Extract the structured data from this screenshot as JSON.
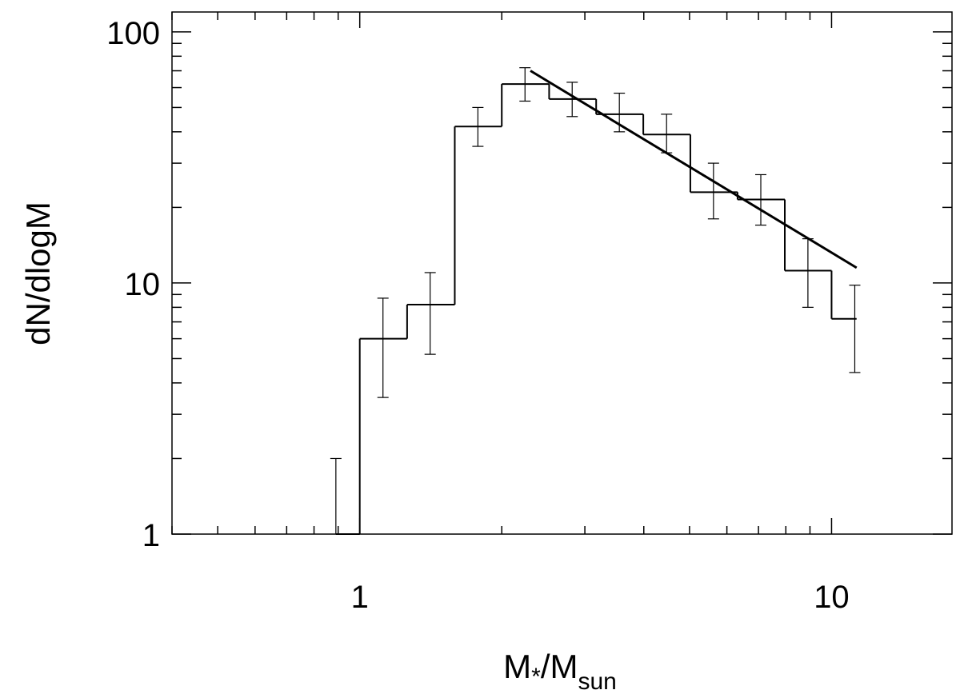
{
  "chart_data": {
    "type": "histogram",
    "xlabel": {
      "main": "M",
      "sub1": "*",
      "sep": "/M",
      "sub2": "sun"
    },
    "ylabel": "dN/dlogM",
    "x_scale": "log",
    "y_scale": "log",
    "xlim": [
      0.4,
      18
    ],
    "ylim": [
      1,
      120
    ],
    "x_ticks": [
      {
        "value": 1,
        "label": "1"
      },
      {
        "value": 10,
        "label": "10"
      }
    ],
    "y_ticks": [
      {
        "value": 1,
        "label": "1"
      },
      {
        "value": 10,
        "label": "10"
      },
      {
        "value": 100,
        "label": "100"
      }
    ],
    "grid": false,
    "legend": "none",
    "series": [
      {
        "type": "step",
        "bins": [
          {
            "left": 0.89,
            "right": 1.0,
            "value": 1.0
          },
          {
            "left": 1.0,
            "right": 1.26,
            "value": 6.0
          },
          {
            "left": 1.26,
            "right": 1.59,
            "value": 8.2
          },
          {
            "left": 1.59,
            "right": 2.0,
            "value": 42
          },
          {
            "left": 2.0,
            "right": 2.52,
            "value": 62
          },
          {
            "left": 2.52,
            "right": 3.17,
            "value": 54
          },
          {
            "left": 3.17,
            "right": 3.99,
            "value": 47
          },
          {
            "left": 3.99,
            "right": 5.02,
            "value": 39
          },
          {
            "left": 5.02,
            "right": 6.32,
            "value": 23
          },
          {
            "left": 6.32,
            "right": 7.96,
            "value": 21.5
          },
          {
            "left": 7.96,
            "right": 10.0,
            "value": 11.2
          },
          {
            "left": 10.0,
            "right": 11.3,
            "value": 7.2
          }
        ]
      },
      {
        "type": "errorbars",
        "points": [
          {
            "x": 0.89,
            "low": 1.0,
            "high": 2.0
          },
          {
            "x": 1.12,
            "low": 3.5,
            "high": 8.7
          },
          {
            "x": 1.41,
            "low": 5.2,
            "high": 11.0
          },
          {
            "x": 1.78,
            "low": 35,
            "high": 50
          },
          {
            "x": 2.24,
            "low": 53,
            "high": 72
          },
          {
            "x": 2.82,
            "low": 46,
            "high": 63
          },
          {
            "x": 3.55,
            "low": 40,
            "high": 57
          },
          {
            "x": 4.47,
            "low": 33,
            "high": 47
          },
          {
            "x": 5.62,
            "low": 18,
            "high": 30
          },
          {
            "x": 7.08,
            "low": 17,
            "high": 27
          },
          {
            "x": 8.91,
            "low": 8,
            "high": 15
          },
          {
            "x": 11.2,
            "low": 4.4,
            "high": 9.8
          }
        ]
      },
      {
        "type": "line",
        "points": [
          {
            "x": 2.3,
            "y": 70
          },
          {
            "x": 11.3,
            "y": 11.5
          }
        ]
      }
    ]
  }
}
